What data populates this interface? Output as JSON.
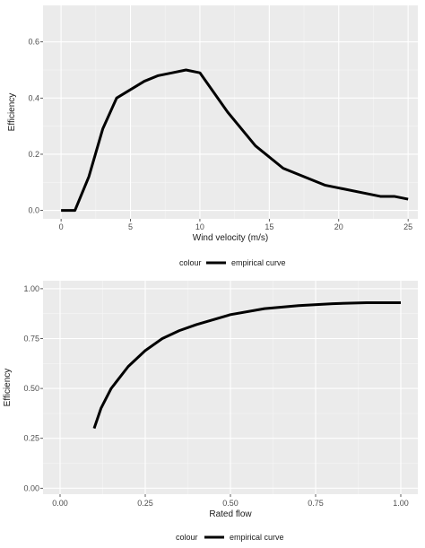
{
  "chart_data": [
    {
      "type": "line",
      "title": "",
      "xlabel": "Wind velocity (m/s)",
      "ylabel": "Efficiency",
      "xlim": [
        -1.3,
        25.7
      ],
      "ylim": [
        -0.03,
        0.73
      ],
      "x_ticks": [
        0,
        5,
        10,
        15,
        20,
        25
      ],
      "x_tick_labels": [
        "0",
        "5",
        "10",
        "15",
        "20",
        "25"
      ],
      "y_ticks": [
        0.0,
        0.2,
        0.4,
        0.6
      ],
      "y_tick_labels": [
        "0.0",
        "0.2",
        "0.4",
        "0.6"
      ],
      "grid": true,
      "legend_position": "bottom",
      "legend_title": "colour",
      "series": [
        {
          "name": "empirical curve",
          "color": "#000000",
          "x": [
            0,
            1,
            2,
            3,
            4,
            5,
            6,
            7,
            8,
            9,
            10,
            12,
            14,
            16,
            18,
            19,
            20,
            22,
            23,
            24,
            25
          ],
          "y": [
            0.0,
            0.0,
            0.12,
            0.29,
            0.4,
            0.43,
            0.46,
            0.48,
            0.49,
            0.5,
            0.49,
            0.35,
            0.23,
            0.15,
            0.11,
            0.09,
            0.08,
            0.06,
            0.05,
            0.05,
            0.04
          ]
        }
      ]
    },
    {
      "type": "line",
      "title": "",
      "xlabel": "Rated flow",
      "ylabel": "Efficiency",
      "xlim": [
        -0.05,
        1.05
      ],
      "ylim": [
        -0.03,
        1.04
      ],
      "x_ticks": [
        0.0,
        0.25,
        0.5,
        0.75,
        1.0
      ],
      "x_tick_labels": [
        "0.00",
        "0.25",
        "0.50",
        "0.75",
        "1.00"
      ],
      "y_ticks": [
        0.0,
        0.25,
        0.5,
        0.75,
        1.0
      ],
      "y_tick_labels": [
        "0.00",
        "0.25",
        "0.50",
        "0.75",
        "1.00"
      ],
      "grid": true,
      "legend_position": "bottom",
      "legend_title": "colour",
      "series": [
        {
          "name": "empirical curve",
          "color": "#000000",
          "x": [
            0.1,
            0.12,
            0.15,
            0.2,
            0.25,
            0.3,
            0.35,
            0.4,
            0.5,
            0.6,
            0.7,
            0.8,
            0.9,
            1.0
          ],
          "y": [
            0.3,
            0.4,
            0.5,
            0.61,
            0.69,
            0.75,
            0.79,
            0.82,
            0.87,
            0.9,
            0.915,
            0.925,
            0.93,
            0.93
          ]
        }
      ]
    }
  ]
}
